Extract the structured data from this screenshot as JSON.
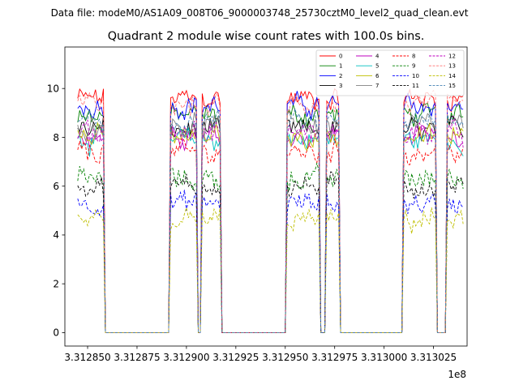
{
  "chart_data": {
    "type": "line",
    "suptitle": "Data file: modeM0/AS1A09_008T06_9000003748_25730cztM0_level2_quad_clean.evt",
    "title": "Quadrant 2 module wise count rates with 100.0s bins.",
    "xlabel": "",
    "ylabel": "",
    "x_offset_label": "1e8",
    "xlim": [
      3.3128385,
      3.313042
    ],
    "ylim": [
      -0.55,
      11.7
    ],
    "x_ticks": [
      3.31285,
      3.312875,
      3.3129,
      3.312925,
      3.31295,
      3.312975,
      3.313,
      3.313025
    ],
    "x_tick_labels": [
      "3.312850",
      "3.312875",
      "3.312900",
      "3.312925",
      "3.312950",
      "3.312975",
      "3.313000",
      "3.313025"
    ],
    "y_ticks": [
      0,
      2,
      4,
      6,
      8,
      10
    ],
    "y_tick_labels": [
      "0",
      "2",
      "4",
      "6",
      "8",
      "10"
    ],
    "grid": false,
    "legend_position": "top-right",
    "x_start": 3.312845,
    "x_step": 1e-06,
    "segments": [
      {
        "start": 0,
        "end": 13,
        "on": true
      },
      {
        "start": 14,
        "end": 46,
        "on": false
      },
      {
        "start": 47,
        "end": 60,
        "on": true
      },
      {
        "start": 61,
        "end": 62,
        "on": false
      },
      {
        "start": 63,
        "end": 72,
        "on": true
      },
      {
        "start": 73,
        "end": 105,
        "on": false
      },
      {
        "start": 106,
        "end": 122,
        "on": true
      },
      {
        "start": 123,
        "end": 125,
        "on": false
      },
      {
        "start": 126,
        "end": 132,
        "on": true
      },
      {
        "start": 133,
        "end": 164,
        "on": false
      },
      {
        "start": 165,
        "end": 181,
        "on": true
      },
      {
        "start": 182,
        "end": 186,
        "on": false
      },
      {
        "start": 187,
        "end": 195,
        "on": true
      }
    ],
    "series": [
      {
        "name": "0",
        "color": "#ff0000",
        "style": "solid",
        "level": 9.6
      },
      {
        "name": "1",
        "color": "#008000",
        "style": "solid",
        "level": 8.9
      },
      {
        "name": "2",
        "color": "#0000ff",
        "style": "solid",
        "level": 9.3
      },
      {
        "name": "3",
        "color": "#000000",
        "style": "solid",
        "level": 8.3
      },
      {
        "name": "4",
        "color": "#bf00bf",
        "style": "solid",
        "level": 8.1
      },
      {
        "name": "5",
        "color": "#00bfbf",
        "style": "solid",
        "level": 7.9
      },
      {
        "name": "6",
        "color": "#bfbf00",
        "style": "solid",
        "level": 8.0
      },
      {
        "name": "7",
        "color": "#808080",
        "style": "solid",
        "level": 8.5
      },
      {
        "name": "8",
        "color": "#ff0000",
        "style": "dashed",
        "level": 7.4
      },
      {
        "name": "9",
        "color": "#008000",
        "style": "dashed",
        "level": 6.3
      },
      {
        "name": "10",
        "color": "#0000ff",
        "style": "dashed",
        "level": 5.3
      },
      {
        "name": "11",
        "color": "#000000",
        "style": "dashed",
        "level": 6.0
      },
      {
        "name": "12",
        "color": "#bf00bf",
        "style": "dashed",
        "level": 8.2
      },
      {
        "name": "13",
        "color": "#ff7070",
        "style": "dashed",
        "level": 9.3
      },
      {
        "name": "14",
        "color": "#bfbf00",
        "style": "dashed",
        "level": 4.6
      },
      {
        "name": "15",
        "color": "#4682b4",
        "style": "dashed",
        "level": 8.6
      }
    ]
  }
}
